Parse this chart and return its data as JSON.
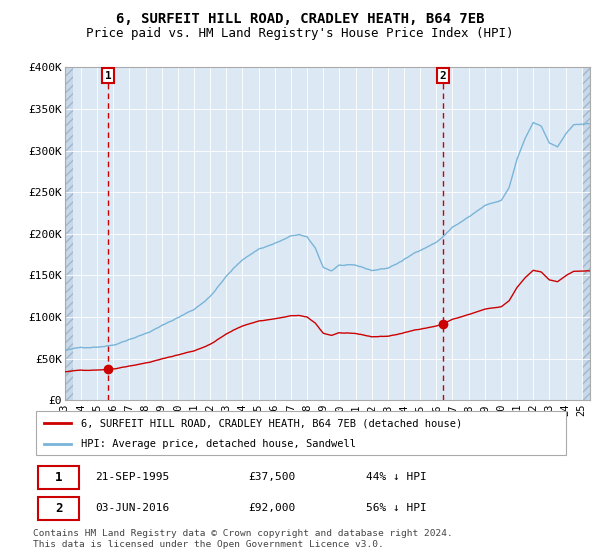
{
  "title": "6, SURFEIT HILL ROAD, CRADLEY HEATH, B64 7EB",
  "subtitle": "Price paid vs. HM Land Registry's House Price Index (HPI)",
  "ylim": [
    0,
    400000
  ],
  "yticks": [
    0,
    50000,
    100000,
    150000,
    200000,
    250000,
    300000,
    350000,
    400000
  ],
  "ytick_labels": [
    "£0",
    "£50K",
    "£100K",
    "£150K",
    "£200K",
    "£250K",
    "£300K",
    "£350K",
    "£400K"
  ],
  "hpi_color": "#7ab4d8",
  "price_color": "#cc0000",
  "plot_bg": "#dce9f5",
  "hatch_bg": "#c8d8e8",
  "grid_color": "#ffffff",
  "legend_label_price": "6, SURFEIT HILL ROAD, CRADLEY HEATH, B64 7EB (detached house)",
  "legend_label_hpi": "HPI: Average price, detached house, Sandwell",
  "point1_date": "21-SEP-1995",
  "point1_price": 37500,
  "point1_note": "44% ↓ HPI",
  "point2_date": "03-JUN-2016",
  "point2_price": 92000,
  "point2_note": "56% ↓ HPI",
  "footer": "Contains HM Land Registry data © Crown copyright and database right 2024.\nThis data is licensed under the Open Government Licence v3.0.",
  "dashed_line_color": "#cc0000",
  "title_fontsize": 10,
  "subtitle_fontsize": 9,
  "xstart": 1993.0,
  "xend": 2025.5
}
